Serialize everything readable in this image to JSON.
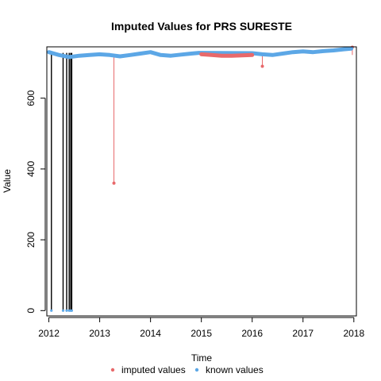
{
  "chart_data": {
    "type": "line",
    "title": "Imputed Values for  PRS SURESTE",
    "xlabel": "Time",
    "ylabel": "Value",
    "xlim": [
      2011.96,
      2018.05
    ],
    "ylim": [
      -15,
      745
    ],
    "x_ticks": [
      2012,
      2013,
      2014,
      2015,
      2016,
      2017,
      2018
    ],
    "y_ticks": [
      0,
      200,
      400,
      600
    ],
    "legend_position": "bottom",
    "colors": {
      "imputed": "#e8696b",
      "known": "#5ca7e6"
    },
    "series": [
      {
        "name": "known values",
        "color": "#5ca7e6",
        "x": [
          2012.0,
          2012.2,
          2012.4,
          2012.6,
          2012.8,
          2013.0,
          2013.2,
          2013.4,
          2013.6,
          2013.8,
          2014.0,
          2014.2,
          2014.4,
          2014.6,
          2014.8,
          2014.95,
          2016.0,
          2016.2,
          2016.4,
          2016.6,
          2016.8,
          2017.0,
          2017.2,
          2017.4,
          2017.6,
          2017.8,
          2017.95
        ],
        "y": [
          730,
          722,
          716,
          720,
          722,
          724,
          722,
          718,
          722,
          726,
          730,
          722,
          720,
          723,
          726,
          728,
          727,
          724,
          722,
          726,
          730,
          732,
          730,
          733,
          735,
          738,
          740
        ]
      },
      {
        "name": "imputed values",
        "color": "#e8696b",
        "x": [
          2015.0,
          2015.2,
          2015.4,
          2015.6,
          2015.8,
          2016.0
        ],
        "y": [
          724,
          722,
          720,
          720,
          721,
          722
        ]
      }
    ],
    "imputed_spikes": [
      {
        "x": 2013.28,
        "y": 360
      },
      {
        "x": 2016.2,
        "y": 690
      },
      {
        "x": 2017.97,
        "y": 744
      }
    ],
    "known_drops": [
      {
        "x": 2012.05,
        "y": 0
      },
      {
        "x": 2012.28,
        "y": 0
      },
      {
        "x": 2012.35,
        "y": 0
      },
      {
        "x": 2012.4,
        "y": 0
      },
      {
        "x": 2012.43,
        "y": 0
      },
      {
        "x": 2012.45,
        "y": 0
      }
    ],
    "legend": [
      {
        "label": "imputed values",
        "color": "#e8696b"
      },
      {
        "label": "known values",
        "color": "#5ca7e6"
      }
    ]
  }
}
